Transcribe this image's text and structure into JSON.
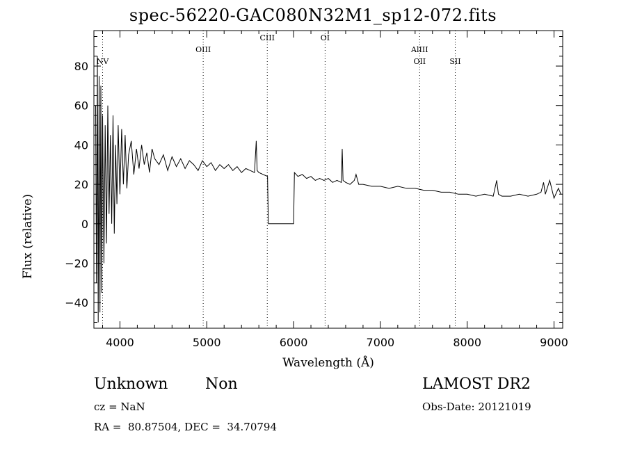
{
  "chart_data": {
    "type": "line",
    "title": "spec-56220-GAC080N32M1_sp12-072.fits",
    "xlabel": "Wavelength (Å)",
    "ylabel": "Flux (relative)",
    "xlim": [
      3700,
      9100
    ],
    "ylim": [
      -53,
      98
    ],
    "xticks": [
      4000,
      5000,
      6000,
      7000,
      8000,
      9000
    ],
    "xtick_labels": [
      "4000",
      "5000",
      "6000",
      "7000",
      "8000",
      "9000"
    ],
    "yticks": [
      -40,
      -20,
      0,
      20,
      40,
      60,
      80
    ],
    "ytick_labels": [
      "−40",
      "−20",
      "0",
      "20",
      "40",
      "60",
      "80"
    ],
    "grid": false,
    "series": [
      {
        "x": [
          3720,
          3730,
          3740,
          3750,
          3760,
          3770,
          3780,
          3790,
          3800,
          3815,
          3830,
          3845,
          3860,
          3875,
          3890,
          3905,
          3920,
          3935,
          3950,
          3965,
          3980,
          4000,
          4020,
          4040,
          4060,
          4080,
          4100,
          4130,
          4160,
          4190,
          4220,
          4250,
          4280,
          4310,
          4340,
          4370,
          4400,
          4450,
          4500,
          4550,
          4600,
          4650,
          4700,
          4750,
          4800,
          4850,
          4900,
          4950,
          5000,
          5050,
          5100,
          5150,
          5200,
          5250,
          5300,
          5350,
          5400,
          5450,
          5500,
          5550,
          5570,
          5580,
          5600,
          5650,
          5700,
          5710,
          6000,
          6010,
          6050,
          6100,
          6150,
          6200,
          6250,
          6300,
          6350,
          6400,
          6450,
          6500,
          6550,
          6560,
          6570,
          6600,
          6650,
          6700,
          6720,
          6750,
          6800,
          6900,
          7000,
          7100,
          7200,
          7300,
          7400,
          7500,
          7600,
          7700,
          7800,
          7900,
          8000,
          8100,
          8200,
          8300,
          8340,
          8360,
          8400,
          8500,
          8600,
          8700,
          8800,
          8850,
          8880,
          8900,
          8950,
          9000,
          9050,
          9080
        ],
        "values": [
          60,
          -30,
          85,
          -50,
          75,
          -45,
          70,
          -35,
          55,
          -20,
          50,
          -10,
          60,
          5,
          45,
          0,
          55,
          -5,
          40,
          10,
          50,
          15,
          48,
          20,
          45,
          18,
          35,
          42,
          25,
          38,
          28,
          40,
          30,
          36,
          26,
          38,
          33,
          30,
          35,
          27,
          34,
          29,
          33,
          28,
          32,
          30,
          27,
          32,
          29,
          31,
          27,
          30,
          28,
          30,
          27,
          29,
          26,
          28,
          27,
          26,
          42,
          27,
          26,
          25,
          24,
          0,
          0,
          26,
          24,
          25,
          23,
          24,
          22,
          23,
          22,
          23,
          21,
          22,
          21,
          38,
          22,
          21,
          20,
          22,
          25,
          20,
          20,
          19,
          19,
          18,
          19,
          18,
          18,
          17,
          17,
          16,
          16,
          15,
          15,
          14,
          15,
          14,
          22,
          15,
          14,
          14,
          15,
          14,
          15,
          16,
          21,
          15,
          22,
          13,
          18,
          15
        ]
      }
    ],
    "lines": [
      {
        "x": 4959,
        "label": "OIII",
        "label_y": 87
      },
      {
        "x": 5697,
        "label": "CIII",
        "label_y": 93
      },
      {
        "x": 6363,
        "label": "OI",
        "label_y": 93
      },
      {
        "x": 7452,
        "label": "AlIII",
        "label_y": 87
      },
      {
        "x": 7452,
        "label": "OII",
        "label_y": 81
      },
      {
        "x": 7862,
        "label": "SII",
        "label_y": 81
      },
      {
        "x": 3800,
        "label": "NV",
        "label_y": 81
      }
    ]
  },
  "footer": {
    "class_left": "Unknown",
    "class_right": "Non",
    "survey": "LAMOST DR2",
    "cz": "cz = NaN",
    "obs_date": "Obs-Date: 20121019",
    "coords": "RA =  80.87504, DEC =  34.70794"
  }
}
